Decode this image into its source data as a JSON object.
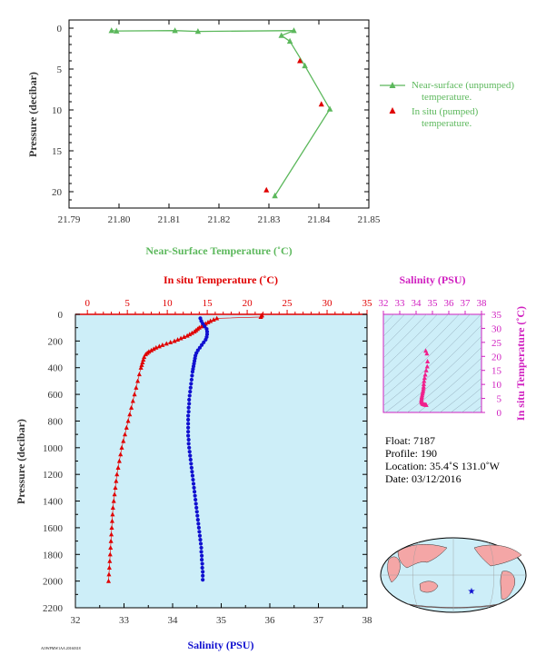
{
  "colors": {
    "green": "#5cb85c",
    "red": "#e00000",
    "blue": "#1010d0",
    "magenta": "#d020c0",
    "pink": "#f0208c",
    "plot_bg": "#cdeef8",
    "axis": "#000000",
    "axis_text": "#333333"
  },
  "chart_data": [
    {
      "type": "line",
      "xlabel": "Near-Surface Temperature (˚C)",
      "ylabel": "Pressure (decibar)",
      "xlim": [
        21.79,
        21.85
      ],
      "ylim": [
        22,
        -1
      ],
      "xticks": [
        "21.79",
        "21.80",
        "21.81",
        "21.82",
        "21.83",
        "21.84",
        "21.85"
      ],
      "yticks": [
        "0",
        "5",
        "10",
        "15",
        "20"
      ],
      "series": [
        {
          "name": "Near-surface (unpumped) temperature.",
          "points": [
            [
              21.8312,
              20.5
            ],
            [
              21.8422,
              9.9
            ],
            [
              21.8372,
              4.6
            ],
            [
              21.8342,
              1.6
            ],
            [
              21.8325,
              0.9
            ],
            [
              21.835,
              0.3
            ],
            [
              21.8158,
              0.4
            ],
            [
              21.8112,
              0.3
            ],
            [
              21.7995,
              0.35
            ],
            [
              21.7985,
              0.3
            ]
          ]
        },
        {
          "name": "In situ (pumped) temperature.",
          "points": [
            [
              21.8295,
              19.8
            ],
            [
              21.8405,
              9.3
            ],
            [
              21.8362,
              4.0
            ]
          ]
        }
      ]
    },
    {
      "type": "line",
      "ylabel": "Pressure (decibar)",
      "top_xlabel": "In situ Temperature (˚C)",
      "bottom_xlabel": "Salinity (PSU)",
      "temp_lim": [
        -1.5,
        35
      ],
      "sal_lim": [
        32,
        38
      ],
      "ylim": [
        2200,
        0
      ],
      "temp_ticks": [
        "0",
        "5",
        "10",
        "15",
        "20",
        "25",
        "30",
        "35"
      ],
      "sal_ticks": [
        "32",
        "33",
        "34",
        "35",
        "36",
        "37",
        "38"
      ],
      "pressure_ticks": [
        "0",
        "200",
        "400",
        "600",
        "800",
        "1000",
        "1200",
        "1400",
        "1600",
        "1800",
        "2000",
        "2200"
      ],
      "temperature": {
        "pressure": [
          5,
          10,
          20,
          30,
          40,
          50,
          60,
          70,
          80,
          90,
          100,
          110,
          120,
          130,
          140,
          150,
          160,
          170,
          180,
          190,
          200,
          210,
          220,
          230,
          240,
          250,
          260,
          270,
          280,
          290,
          300,
          320,
          340,
          360,
          380,
          400,
          450,
          500,
          550,
          600,
          650,
          700,
          750,
          800,
          850,
          900,
          950,
          1000,
          1050,
          1100,
          1150,
          1200,
          1250,
          1300,
          1350,
          1400,
          1450,
          1500,
          1550,
          1600,
          1650,
          1700,
          1750,
          1800,
          1850,
          1900,
          1950,
          2000
        ],
        "values": [
          21.84,
          21.82,
          21.7,
          16.2,
          15.8,
          15.4,
          15.1,
          14.8,
          14.6,
          14.3,
          14.0,
          13.8,
          13.6,
          13.4,
          13.1,
          12.8,
          12.5,
          12.1,
          11.7,
          11.3,
          10.9,
          10.4,
          9.9,
          9.4,
          9.0,
          8.6,
          8.3,
          8.0,
          7.7,
          7.5,
          7.3,
          7.1,
          7.0,
          6.9,
          6.8,
          6.7,
          6.5,
          6.3,
          6.1,
          5.9,
          5.7,
          5.5,
          5.3,
          5.1,
          4.9,
          4.7,
          4.5,
          4.3,
          4.15,
          4.0,
          3.85,
          3.7,
          3.6,
          3.5,
          3.4,
          3.3,
          3.2,
          3.15,
          3.1,
          3.05,
          3.0,
          2.95,
          2.9,
          2.85,
          2.8,
          2.75,
          2.7,
          2.65
        ]
      },
      "salinity": {
        "pressure": [
          30,
          50,
          70,
          90,
          110,
          130,
          150,
          170,
          190,
          210,
          230,
          250,
          270,
          290,
          310,
          330,
          350,
          370,
          390,
          410,
          430,
          460,
          490,
          520,
          550,
          580,
          610,
          640,
          670,
          700,
          730,
          760,
          790,
          820,
          850,
          880,
          910,
          940,
          970,
          1000,
          1030,
          1060,
          1090,
          1120,
          1150,
          1180,
          1210,
          1240,
          1270,
          1300,
          1330,
          1360,
          1390,
          1420,
          1450,
          1480,
          1510,
          1540,
          1570,
          1600,
          1630,
          1660,
          1690,
          1720,
          1750,
          1780,
          1810,
          1840,
          1870,
          1900,
          1930,
          1960,
          1990
        ],
        "values": [
          34.57,
          34.59,
          34.62,
          34.66,
          34.7,
          34.71,
          34.71,
          34.7,
          34.68,
          34.64,
          34.6,
          34.56,
          34.52,
          34.49,
          34.47,
          34.46,
          34.45,
          34.44,
          34.43,
          34.42,
          34.41,
          34.4,
          34.39,
          34.38,
          34.37,
          34.36,
          34.35,
          34.34,
          34.34,
          34.33,
          34.33,
          34.32,
          34.32,
          34.32,
          34.32,
          34.32,
          34.32,
          34.33,
          34.33,
          34.34,
          34.35,
          34.36,
          34.37,
          34.38,
          34.39,
          34.4,
          34.41,
          34.42,
          34.43,
          34.44,
          34.45,
          34.46,
          34.47,
          34.48,
          34.49,
          34.5,
          34.51,
          34.52,
          34.53,
          34.54,
          34.55,
          34.56,
          34.57,
          34.58,
          34.59,
          34.59,
          34.6,
          34.6,
          34.61,
          34.61,
          34.62,
          34.62,
          34.62
        ]
      }
    },
    {
      "type": "scatter",
      "xlabel": "Salinity (PSU)",
      "ylabel": "In situ Temperature (˚C)",
      "xlim": [
        32,
        38
      ],
      "ylim": [
        0,
        35
      ],
      "xticks": [
        "32",
        "33",
        "34",
        "35",
        "36",
        "37",
        "38"
      ],
      "yticks": [
        "0",
        "5",
        "10",
        "15",
        "20",
        "25",
        "30",
        "35"
      ],
      "points": [
        [
          34.59,
          22.0
        ],
        [
          34.66,
          21.0
        ],
        [
          34.7,
          18.2
        ],
        [
          34.68,
          16.4
        ],
        [
          34.62,
          15.0
        ],
        [
          34.56,
          13.5
        ],
        [
          34.52,
          12.3
        ],
        [
          34.49,
          11.2
        ],
        [
          34.47,
          10.1
        ],
        [
          34.46,
          9.2
        ],
        [
          34.45,
          8.5
        ],
        [
          34.43,
          7.8
        ],
        [
          34.41,
          7.3
        ],
        [
          34.39,
          6.7
        ],
        [
          34.37,
          6.1
        ],
        [
          34.35,
          5.6
        ],
        [
          34.34,
          5.1
        ],
        [
          34.33,
          4.6
        ],
        [
          34.32,
          4.2
        ],
        [
          34.33,
          3.8
        ],
        [
          34.35,
          3.5
        ],
        [
          34.38,
          3.2
        ],
        [
          34.42,
          3.0
        ],
        [
          34.47,
          2.9
        ],
        [
          34.52,
          2.8
        ],
        [
          34.57,
          2.75
        ],
        [
          34.61,
          2.7
        ],
        [
          34.62,
          2.65
        ]
      ]
    }
  ],
  "info": {
    "float": "Float:  7187",
    "profile": "Profile:  190",
    "location": "Location:  35.4˚S  131.0˚W",
    "date": "Date:  03/12/2016"
  },
  "legend": {
    "line1a": "Near-surface (unpumped)",
    "line1b": "temperature.",
    "line2a": "In situ (pumped)",
    "line2b": "temperature."
  },
  "footer": "AOWPMW1AA 20160318"
}
